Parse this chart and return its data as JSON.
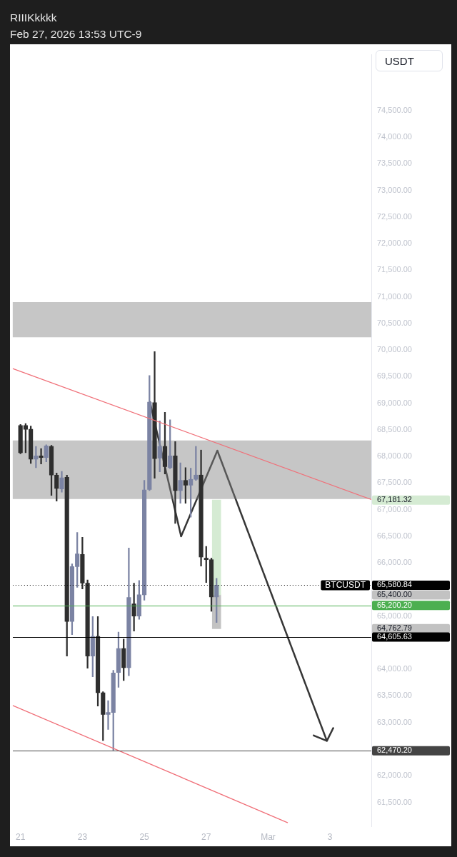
{
  "chart_data": {
    "type": "candlestick",
    "title": "RIIIKkkkk",
    "subtitle": "Feb 27, 2026 13:53 UTC-9",
    "ylabel": "USDT",
    "xlim": [
      "2026-02-20T18:00",
      "2026-03-04T08:00"
    ],
    "xticks": [
      {
        "value": "2026-02-21",
        "label": "21"
      },
      {
        "value": "2026-02-23",
        "label": "23"
      },
      {
        "value": "2026-02-25",
        "label": "25"
      },
      {
        "value": "2026-02-27",
        "label": "27"
      },
      {
        "value": "2026-03-01",
        "label": "Mar"
      },
      {
        "value": "2026-03-03",
        "label": "3"
      }
    ],
    "ylim": [
      61050,
      75550
    ],
    "yticks": [
      {
        "value": 74500,
        "label": "74,500.00"
      },
      {
        "value": 74000,
        "label": "74,000.00"
      },
      {
        "value": 73500,
        "label": "73,500.00"
      },
      {
        "value": 73000,
        "label": "73,000.00"
      },
      {
        "value": 72500,
        "label": "72,500.00"
      },
      {
        "value": 72000,
        "label": "72,000.00"
      },
      {
        "value": 71500,
        "label": "71,500.00"
      },
      {
        "value": 71000,
        "label": "71,000.00"
      },
      {
        "value": 70500,
        "label": "70,500.00"
      },
      {
        "value": 70000,
        "label": "70,000.00"
      },
      {
        "value": 69500,
        "label": "69,500.00"
      },
      {
        "value": 69000,
        "label": "69,000.00"
      },
      {
        "value": 68500,
        "label": "68,500.00"
      },
      {
        "value": 68000,
        "label": "68,000.00"
      },
      {
        "value": 67500,
        "label": "67,500.00"
      },
      {
        "value": 67181.32,
        "label": "67,181.32"
      },
      {
        "value": 67000,
        "label": "67,000.00"
      },
      {
        "value": 66500,
        "label": "66,500.00"
      },
      {
        "value": 66000,
        "label": "66,000.00"
      },
      {
        "value": 65580.84,
        "label": "65,580.84"
      },
      {
        "value": 65400,
        "label": "65,400.00"
      },
      {
        "value": 65200.2,
        "label": "65,200.20"
      },
      {
        "value": 65000,
        "label": "65,000.00"
      },
      {
        "value": 64762.79,
        "label": "64,762.79"
      },
      {
        "value": 64605.63,
        "label": "64,605.63"
      },
      {
        "value": 64000,
        "label": "64,000.00"
      },
      {
        "value": 63500,
        "label": "63,500.00"
      },
      {
        "value": 63000,
        "label": "63,000.00"
      },
      {
        "value": 62470.2,
        "label": "62,470.20"
      },
      {
        "value": 62000,
        "label": "62,000.00"
      },
      {
        "value": 61500,
        "label": "61,500.00"
      }
    ],
    "series": [
      {
        "x": [
          "2026-02-21T00:00",
          "2026-02-21T04:00",
          "2026-02-21T08:00",
          "2026-02-21T12:00",
          "2026-02-21T16:00",
          "2026-02-21T20:00",
          "2026-02-22T00:00",
          "2026-02-22T04:00",
          "2026-02-22T08:00",
          "2026-02-22T12:00",
          "2026-02-22T16:00",
          "2026-02-22T20:00",
          "2026-02-23T00:00",
          "2026-02-23T04:00",
          "2026-02-23T08:00",
          "2026-02-23T12:00",
          "2026-02-23T16:00",
          "2026-02-23T20:00",
          "2026-02-24T00:00",
          "2026-02-24T04:00",
          "2026-02-24T08:00",
          "2026-02-24T12:00",
          "2026-02-24T16:00",
          "2026-02-24T20:00",
          "2026-02-25T00:00",
          "2026-02-25T04:00",
          "2026-02-25T08:00",
          "2026-02-25T12:00",
          "2026-02-25T16:00",
          "2026-02-25T20:00",
          "2026-02-26T00:00",
          "2026-02-26T04:00",
          "2026-02-26T08:00",
          "2026-02-26T12:00",
          "2026-02-26T16:00",
          "2026-02-26T20:00",
          "2026-02-27T00:00",
          "2026-02-27T04:00",
          "2026-02-27T08:00"
        ],
        "ohlc": [
          [
            68580,
            68600,
            68050,
            68070
          ],
          [
            68580,
            68620,
            68070,
            68510
          ],
          [
            68510,
            68570,
            67870,
            67950
          ],
          [
            67950,
            68190,
            67790,
            68010
          ],
          [
            68010,
            68150,
            67860,
            67980
          ],
          [
            67980,
            68220,
            67900,
            68200
          ],
          [
            68190,
            68210,
            67270,
            67650
          ],
          [
            67650,
            67690,
            67160,
            67400
          ],
          [
            67390,
            67720,
            67330,
            67600
          ],
          [
            67610,
            67650,
            64250,
            64900
          ],
          [
            64900,
            65980,
            64650,
            65930
          ],
          [
            65930,
            66570,
            65540,
            66170
          ],
          [
            66160,
            66480,
            65510,
            65620
          ],
          [
            65620,
            65680,
            64020,
            64250
          ],
          [
            64250,
            64990,
            63860,
            64620
          ],
          [
            64620,
            64990,
            63310,
            63560
          ],
          [
            63560,
            63580,
            62660,
            63150
          ],
          [
            63150,
            63410,
            62870,
            63190
          ],
          [
            63190,
            63980,
            62480,
            63930
          ],
          [
            63940,
            64700,
            63660,
            64390
          ],
          [
            64390,
            64570,
            63790,
            64030
          ],
          [
            64030,
            66280,
            63880,
            65350
          ],
          [
            65230,
            65620,
            64720,
            65000
          ],
          [
            65000,
            65670,
            64940,
            65400
          ],
          [
            65400,
            67550,
            65300,
            67370
          ],
          [
            67380,
            69520,
            67360,
            69020
          ],
          [
            69010,
            69970,
            67590,
            67960
          ],
          [
            67970,
            68670,
            67710,
            68190
          ],
          [
            68190,
            68830,
            67670,
            67810
          ],
          [
            67790,
            68690,
            67770,
            68010
          ],
          [
            68010,
            68280,
            66740,
            67360
          ],
          [
            67360,
            67880,
            67120,
            67550
          ],
          [
            67550,
            67790,
            67120,
            67460
          ],
          [
            67460,
            67780,
            66860,
            67570
          ],
          [
            67570,
            68190,
            67550,
            67650
          ],
          [
            67650,
            68120,
            65940,
            66110
          ],
          [
            66090,
            66310,
            65630,
            66060
          ],
          [
            66060,
            66090,
            65090,
            65360
          ],
          [
            65360,
            65710,
            64880,
            65580.84
          ]
        ],
        "colors": [
          "#2e2e2e",
          "#2e2e2e",
          "#2e2e2e",
          "#7b83a3",
          "#2e2e2e",
          "#7b83a3",
          "#2e2e2e",
          "#2e2e2e",
          "#7b83a3",
          "#2e2e2e",
          "#7b83a3",
          "#7b83a3",
          "#2e2e2e",
          "#2e2e2e",
          "#7b83a3",
          "#2e2e2e",
          "#2e2e2e",
          "#7b83a3",
          "#7b83a3",
          "#7b83a3",
          "#2e2e2e",
          "#7b83a3",
          "#2e2e2e",
          "#7b83a3",
          "#7b83a3",
          "#7b83a3",
          "#2e2e2e",
          "#7b83a3",
          "#2e2e2e",
          "#7b83a3",
          "#2e2e2e",
          "#7b83a3",
          "#2e2e2e",
          "#7b83a3",
          "#7b83a3",
          "#2e2e2e",
          "#2e2e2e",
          "#2e2e2e",
          "#7b83a3"
        ]
      },
      {
        "type": "bar",
        "x": [
          "2026-02-27T08:00"
        ],
        "base": [
          65400
        ],
        "values": [
          1781.32
        ],
        "color": "#d5ebd3"
      },
      {
        "type": "bar",
        "x": [
          "2026-02-27T08:00"
        ],
        "base": [
          64762.79
        ],
        "values": [
          637.21
        ],
        "color": "#c2c2c2"
      },
      {
        "type": "line",
        "x": [
          "2026-02-20T18:00",
          "2026-03-04T08:00"
        ],
        "values": [
          69650,
          67190
        ],
        "color": "#f07079"
      },
      {
        "type": "line",
        "x": [
          "2026-02-20T18:00",
          "2026-03-01T15:00"
        ],
        "values": [
          63320,
          61120
        ],
        "color": "#f07079"
      }
    ],
    "bands": [
      {
        "axis": "y",
        "from": 70240,
        "to": 70900,
        "color": "#c6c6c6"
      },
      {
        "axis": "y",
        "from": 67200,
        "to": 68300,
        "color": "#c6c6c6"
      }
    ],
    "ref_lines": [
      {
        "axis": "y",
        "value": 65580.84,
        "label": "BTCUSDT",
        "color": "#000000",
        "line_style": "dotted"
      },
      {
        "axis": "y",
        "value": 65200.2,
        "color": "#4caf50"
      },
      {
        "axis": "y",
        "value": 64605.63,
        "color": "#000000"
      },
      {
        "axis": "y",
        "value": 62470.2,
        "color": "#444444"
      }
    ]
  }
}
